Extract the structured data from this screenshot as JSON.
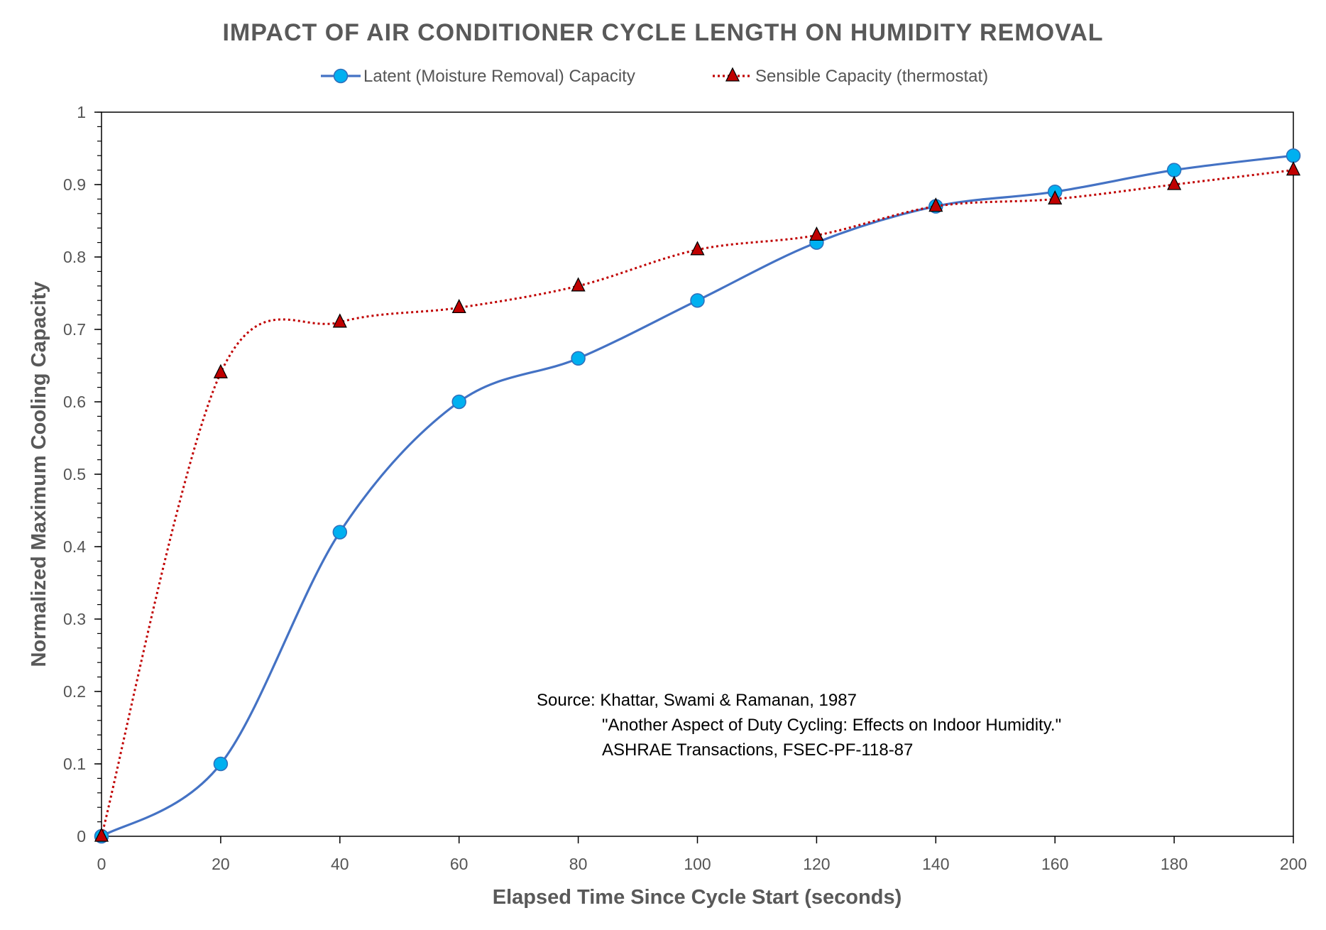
{
  "chart_data": {
    "type": "line",
    "title": "IMPACT OF AIR CONDITIONER CYCLE LENGTH ON HUMIDITY REMOVAL",
    "xlabel": "Elapsed Time Since Cycle Start (seconds)",
    "ylabel": "Normalized Maximum Cooling Capacity",
    "xlim": [
      0,
      200
    ],
    "ylim": [
      0,
      1
    ],
    "xticks": [
      0,
      20,
      40,
      60,
      80,
      100,
      120,
      140,
      160,
      180,
      200
    ],
    "yticks": [
      0,
      0.1,
      0.2,
      0.3,
      0.4,
      0.5,
      0.6,
      0.7,
      0.8,
      0.9,
      1
    ],
    "grid": false,
    "legend_position": "top",
    "smoothed": true,
    "x": [
      0,
      20,
      40,
      60,
      80,
      100,
      120,
      140,
      160,
      180,
      200
    ],
    "series": [
      {
        "name": "Latent (Moisture Removal) Capacity",
        "values": [
          0,
          0.1,
          0.42,
          0.6,
          0.66,
          0.74,
          0.82,
          0.87,
          0.89,
          0.92,
          0.94
        ],
        "color": "#4472C4",
        "marker_color": "#00B0F0",
        "marker": "circle",
        "line_style": "solid"
      },
      {
        "name": "Sensible Capacity (thermostat)",
        "values": [
          0,
          0.64,
          0.71,
          0.73,
          0.76,
          0.81,
          0.83,
          0.87,
          0.88,
          0.9,
          0.92
        ],
        "color": "#C00000",
        "marker_color": "#C00000",
        "marker": "triangle",
        "line_style": "dotted"
      }
    ],
    "annotation": [
      "Source: Khattar, Swami & Ramanan, 1987",
      "\"Another Aspect of Duty Cycling: Effects on Indoor Humidity.\"",
      "ASHRAE Transactions, FSEC-PF-118-87"
    ]
  }
}
